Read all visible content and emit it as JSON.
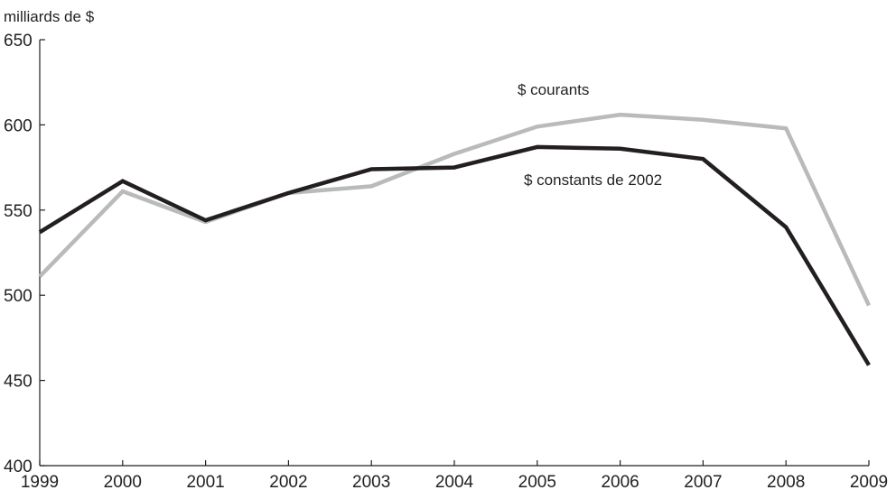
{
  "chart_data": {
    "type": "line",
    "ylabel": "milliards de $",
    "ylim": [
      400,
      650
    ],
    "yticks": [
      400,
      450,
      500,
      550,
      600,
      650
    ],
    "x": [
      "1999",
      "2000",
      "2001",
      "2002",
      "2003",
      "2004",
      "2005",
      "2006",
      "2007",
      "2008",
      "2009"
    ],
    "grid": false,
    "legend": "none",
    "series": [
      {
        "name": "$ courants",
        "color": "#b8babc",
        "values": [
          511,
          561,
          543,
          560,
          564,
          583,
          599,
          606,
          603,
          598,
          494
        ]
      },
      {
        "name": "$ constants de 2002",
        "color": "#231f20",
        "values": [
          537,
          567,
          544,
          560,
          574,
          575,
          587,
          586,
          580,
          540,
          459
        ]
      }
    ]
  }
}
